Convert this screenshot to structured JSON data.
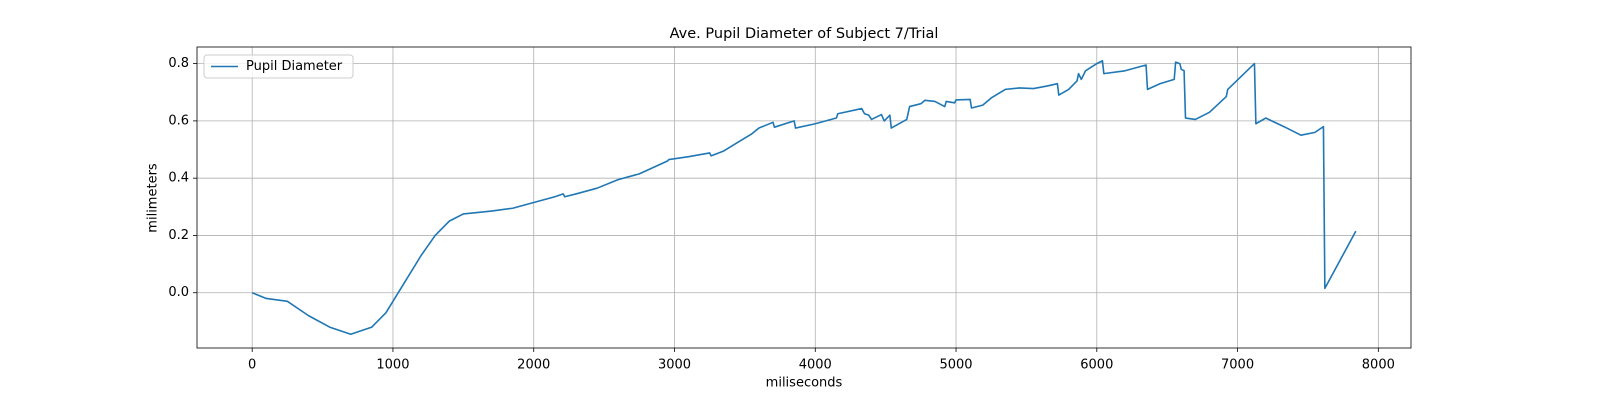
{
  "chart_data": {
    "type": "line",
    "title": "Ave. Pupil Diameter of Subject 7/Trial",
    "xlabel": "miliseconds",
    "ylabel": "milimeters",
    "x": [
      0,
      100,
      250,
      400,
      550,
      700,
      850,
      950,
      1000,
      1100,
      1200,
      1300,
      1400,
      1500,
      1700,
      1850,
      2000,
      2150,
      2210,
      2220,
      2300,
      2450,
      2600,
      2750,
      2950,
      2960,
      3100,
      3250,
      3260,
      3350,
      3450,
      3550,
      3600,
      3700,
      3710,
      3850,
      3860,
      4000,
      4150,
      4160,
      4330,
      4350,
      4380,
      4400,
      4470,
      4490,
      4530,
      4540,
      4650,
      4670,
      4750,
      4780,
      4850,
      4920,
      4930,
      4990,
      5000,
      5100,
      5110,
      5190,
      5250,
      5350,
      5450,
      5550,
      5650,
      5720,
      5730,
      5800,
      5860,
      5870,
      5890,
      5920,
      6000,
      6040,
      6050,
      6200,
      6350,
      6360,
      6450,
      6550,
      6560,
      6590,
      6600,
      6620,
      6630,
      6700,
      6800,
      6920,
      6930,
      7120,
      7130,
      7200,
      7350,
      7450,
      7550,
      7610,
      7620,
      7840
    ],
    "series": [
      {
        "name": "Pupil Diameter",
        "color": "#1f77b4",
        "values": [
          0,
          -0.02,
          -0.03,
          -0.08,
          -0.12,
          -0.145,
          -0.12,
          -0.07,
          -0.03,
          0.05,
          0.13,
          0.2,
          0.25,
          0.275,
          0.285,
          0.295,
          0.315,
          0.335,
          0.345,
          0.335,
          0.345,
          0.365,
          0.395,
          0.415,
          0.46,
          0.465,
          0.475,
          0.488,
          0.478,
          0.495,
          0.525,
          0.555,
          0.575,
          0.595,
          0.578,
          0.6,
          0.575,
          0.59,
          0.61,
          0.625,
          0.643,
          0.625,
          0.62,
          0.605,
          0.622,
          0.6,
          0.62,
          0.575,
          0.605,
          0.65,
          0.66,
          0.672,
          0.668,
          0.65,
          0.668,
          0.663,
          0.673,
          0.675,
          0.645,
          0.655,
          0.68,
          0.71,
          0.715,
          0.713,
          0.722,
          0.73,
          0.69,
          0.71,
          0.74,
          0.765,
          0.745,
          0.775,
          0.8,
          0.81,
          0.765,
          0.775,
          0.795,
          0.71,
          0.73,
          0.745,
          0.805,
          0.8,
          0.78,
          0.775,
          0.61,
          0.605,
          0.63,
          0.685,
          0.71,
          0.8,
          0.59,
          0.61,
          0.575,
          0.55,
          0.56,
          0.58,
          0.015,
          0.215
        ]
      }
    ],
    "xlim": [
      -392,
      8232
    ],
    "xticks": [
      0,
      1000,
      2000,
      3000,
      4000,
      5000,
      6000,
      7000,
      8000
    ],
    "ylim": [
      -0.193,
      0.858
    ],
    "yticks": [
      {
        "value": 0,
        "label": "0.0"
      },
      0.2,
      0.4,
      0.6,
      0.8
    ],
    "grid": true,
    "legend": "upper left"
  }
}
